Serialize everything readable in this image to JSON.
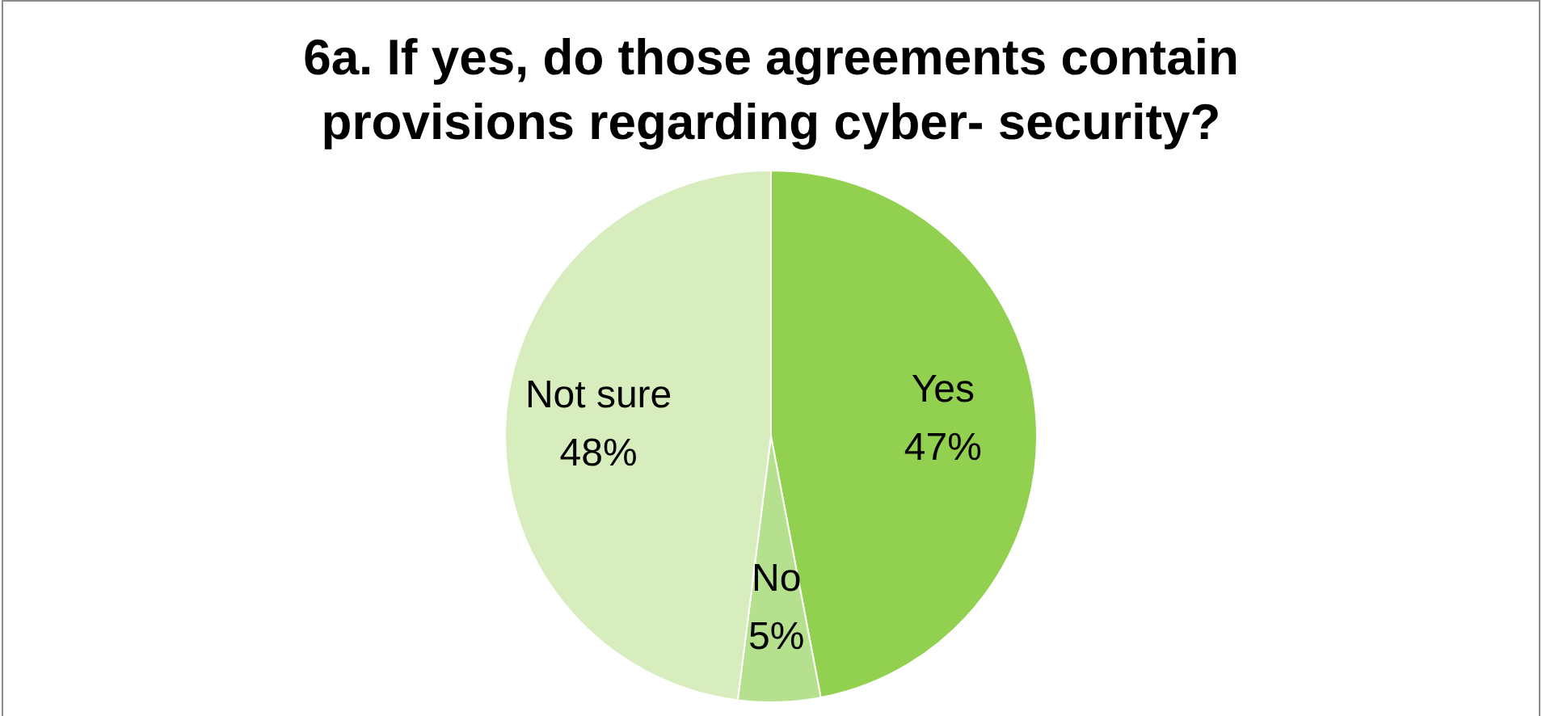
{
  "chart_data": {
    "type": "pie",
    "title": "6a. If yes, do those agreements contain provisions regarding cyber- security?",
    "categories": [
      "Yes",
      "No",
      "Not sure"
    ],
    "values": [
      47,
      5,
      48
    ],
    "value_labels": [
      "47%",
      "5%",
      "48%"
    ],
    "colors": [
      "#92d050",
      "#b5e08e",
      "#d7edbd"
    ],
    "legend": false
  }
}
